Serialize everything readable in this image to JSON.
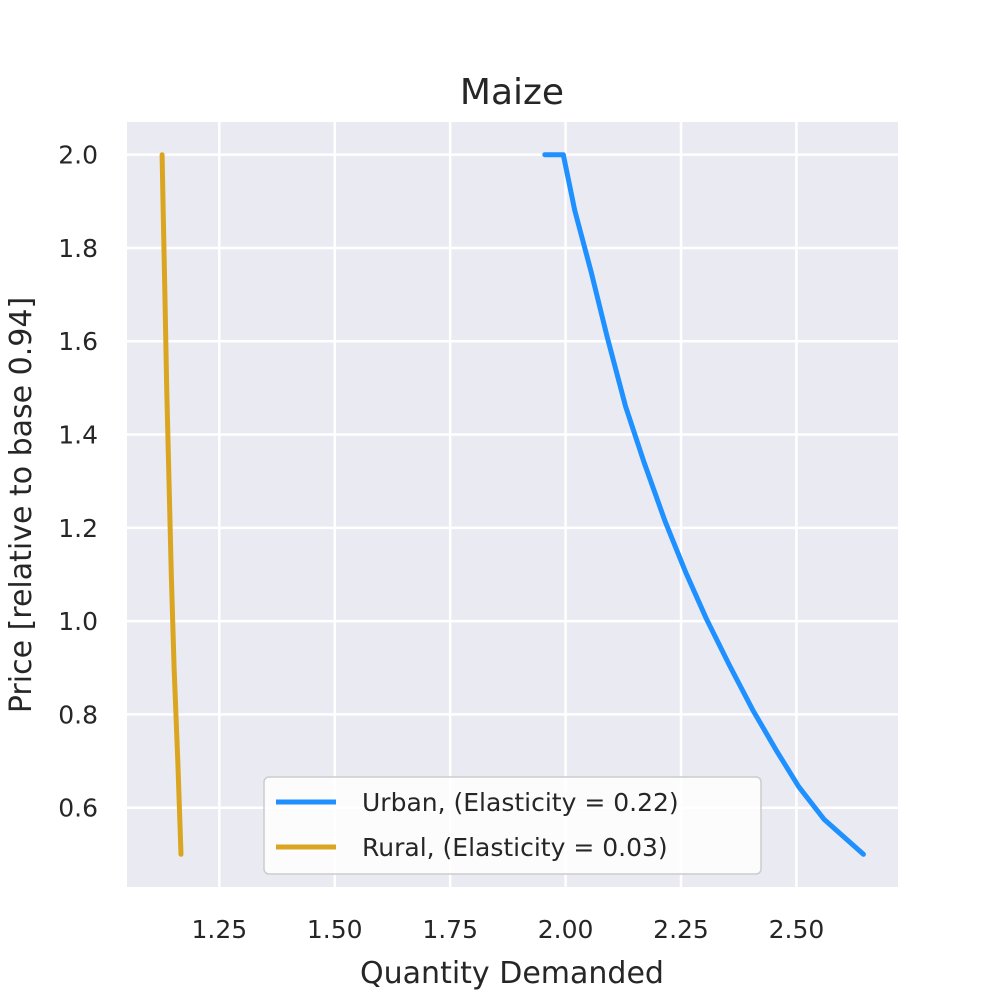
{
  "chart_data": {
    "type": "line",
    "title": "Maize",
    "xlabel": "Quantity Demanded",
    "ylabel": "Price [relative to base 0.94]",
    "xlim": [
      1.05,
      2.72
    ],
    "ylim": [
      0.43,
      2.07
    ],
    "xticks": [
      1.25,
      1.5,
      1.75,
      2.0,
      2.25,
      2.5
    ],
    "xtick_labels": [
      "1.25",
      "1.50",
      "1.75",
      "2.00",
      "2.25",
      "2.50"
    ],
    "yticks": [
      0.6,
      0.8,
      1.0,
      1.2,
      1.4,
      1.6,
      1.8,
      2.0
    ],
    "ytick_labels": [
      "0.6",
      "0.8",
      "1.0",
      "1.2",
      "1.4",
      "1.6",
      "1.8",
      "2.0"
    ],
    "grid": true,
    "background": "#eaeaf2",
    "legend_position": "lower-center",
    "series": [
      {
        "name": "Urban, (Elasticity = 0.22)",
        "color": "#1e90ff",
        "points": [
          [
            2.645,
            0.5
          ],
          [
            2.56,
            0.575
          ],
          [
            2.505,
            0.645
          ],
          [
            2.455,
            0.725
          ],
          [
            2.405,
            0.81
          ],
          [
            2.355,
            0.905
          ],
          [
            2.305,
            1.005
          ],
          [
            2.26,
            1.105
          ],
          [
            2.215,
            1.215
          ],
          [
            2.17,
            1.34
          ],
          [
            2.13,
            1.46
          ],
          [
            2.09,
            1.61
          ],
          [
            2.055,
            1.75
          ],
          [
            2.02,
            1.88
          ],
          [
            1.995,
            2.0
          ],
          [
            1.955,
            2.0
          ]
        ]
      },
      {
        "name": "Rural, (Elasticity = 0.03)",
        "color": "#daa520",
        "points": [
          [
            1.167,
            0.5
          ],
          [
            1.16,
            0.7
          ],
          [
            1.152,
            0.9
          ],
          [
            1.146,
            1.1
          ],
          [
            1.141,
            1.3
          ],
          [
            1.136,
            1.5
          ],
          [
            1.132,
            1.7
          ],
          [
            1.128,
            1.9
          ],
          [
            1.126,
            2.0
          ]
        ]
      }
    ]
  }
}
